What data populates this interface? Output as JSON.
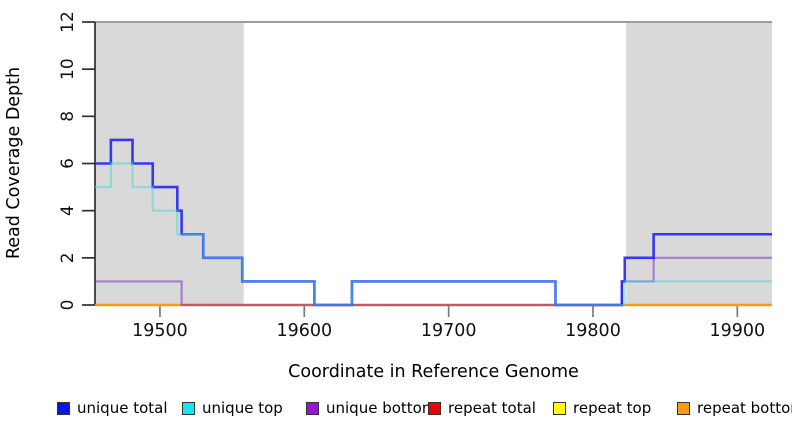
{
  "chart_data": {
    "type": "line",
    "subtype": "step-coverage",
    "xlabel": "Coordinate in Reference Genome",
    "ylabel": "Read Coverage Depth",
    "xlim": [
      19455,
      19924
    ],
    "ylim": [
      0,
      12
    ],
    "x_ticks": [
      19500,
      19600,
      19700,
      19800,
      19900
    ],
    "y_ticks": [
      0,
      2,
      4,
      6,
      8,
      10,
      12
    ],
    "grid": false,
    "legend_position": "bottom",
    "repeat_region_color": "#d9d9d9",
    "repeat_regions": [
      [
        19455,
        19558
      ],
      [
        19823,
        19924
      ]
    ],
    "series": [
      {
        "name": "repeat top",
        "color": "#f0f000",
        "opacity": 1,
        "width": 2,
        "steps": [
          [
            19455,
            0
          ]
        ]
      },
      {
        "name": "repeat total",
        "color": "#dd0000",
        "opacity": 0.55,
        "width": 2,
        "steps": [
          [
            19455,
            0
          ]
        ]
      },
      {
        "name": "repeat bottom",
        "color": "#ff9911",
        "opacity": 1,
        "width": 2.4,
        "steps": [
          [
            19455,
            0
          ]
        ]
      },
      {
        "name": "unique bottom",
        "color": "#7722cc",
        "opacity": 0.5,
        "width": 2.2,
        "steps": [
          [
            19455,
            1
          ],
          [
            19515,
            0
          ],
          [
            19820,
            1
          ],
          [
            19842,
            2
          ]
        ]
      },
      {
        "name": "unique total",
        "color": "#1a1aee",
        "opacity": 0.85,
        "width": 2.6,
        "steps": [
          [
            19455,
            6
          ],
          [
            19466,
            7
          ],
          [
            19481,
            6
          ],
          [
            19495,
            5
          ],
          [
            19512,
            4
          ],
          [
            19515,
            3
          ],
          [
            19530,
            2
          ],
          [
            19557,
            1
          ],
          [
            19607,
            0
          ],
          [
            19633,
            1
          ],
          [
            19774,
            0
          ],
          [
            19820,
            1
          ],
          [
            19822,
            2
          ],
          [
            19842,
            3
          ]
        ]
      },
      {
        "name": "unique top",
        "color": "#44d8e0",
        "opacity": 0.5,
        "width": 2.2,
        "steps": [
          [
            19455,
            5
          ],
          [
            19466,
            6
          ],
          [
            19481,
            5
          ],
          [
            19495,
            4
          ],
          [
            19512,
            3
          ],
          [
            19530,
            2
          ],
          [
            19557,
            1
          ],
          [
            19607,
            0
          ],
          [
            19633,
            1
          ],
          [
            19774,
            0
          ],
          [
            19822,
            1
          ]
        ]
      }
    ],
    "legend": [
      {
        "label": "unique total",
        "color": "#1111ee"
      },
      {
        "label": "unique top",
        "color": "#11e8e8"
      },
      {
        "label": "unique bottom",
        "color": "#9911dd"
      },
      {
        "label": "repeat total",
        "color": "#ee0000"
      },
      {
        "label": "repeat top",
        "color": "#ffff00"
      },
      {
        "label": "repeat bottom",
        "color": "#ff9911"
      }
    ]
  }
}
